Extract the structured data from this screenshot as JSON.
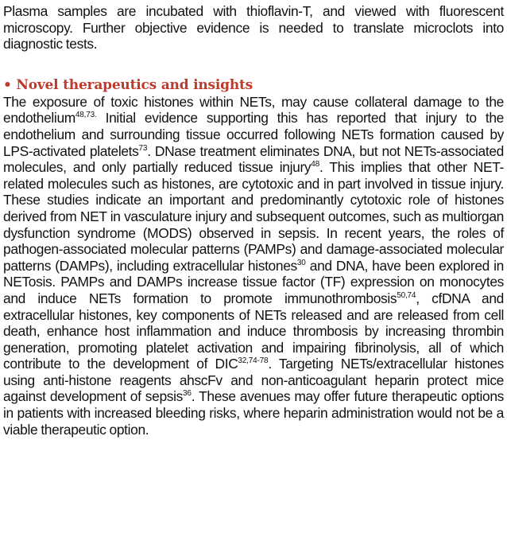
{
  "intro": "Plasma samples are incubated with thioflavin-T, and viewed with fluorescent microscopy. Further objective evidence is needed to translate microclots into diagnostic tests.",
  "section": {
    "heading": "• Novel therapeutics and insights",
    "segments": [
      "The exposure of toxic histones within NETs, may cause collateral damage to the endothelium",
      "48,73.",
      " Initial evidence supporting this has reported that injury to the endothelium and surrounding tissue occurred following NETs  formation caused by LPS-activated platelets",
      "73",
      ". DNase treatment eliminates DNA, but not NETs-associated molecules, and only partially reduced tissue injury",
      "48",
      ". This implies that other NET-related molecules such as histones, are cytotoxic and in part involved in tissue injury. These studies indicate an important and predominantly cytotoxic role of histones derived from NET in vasculature injury and subsequent outcomes, such as multiorgan dysfunction syndrome (MODS)  observed in sepsis. In recent years, the roles of pathogen-associated molecular patterns (PAMPs) and damage-associated molecular patterns (DAMPs), including extracellular histones",
      "30",
      " and DNA, have been explored in NETosis. PAMPs and DAMPs increase tissue factor (TF) expression on monocytes and induce NETs formation to promote immunothrombosis",
      "50,74",
      ", cfDNA and extracellular histones, key components of NETs released and are released from cell death, enhance host inflammation and induce thrombosis by increasing thrombin generation, promoting platelet activation and impairing fibrinolysis, all of which contribute to the development of DIC",
      "32,74-78",
      ". Targeting NETs/extracellular histones using anti-histone reagents ahscFv and non-anticoagulant heparin protect mice against development of sepsis",
      "36",
      ". These avenues may offer future therapeutic options in patients with increased bleeding risks, where heparin administration would not be a viable therapeutic option."
    ]
  }
}
